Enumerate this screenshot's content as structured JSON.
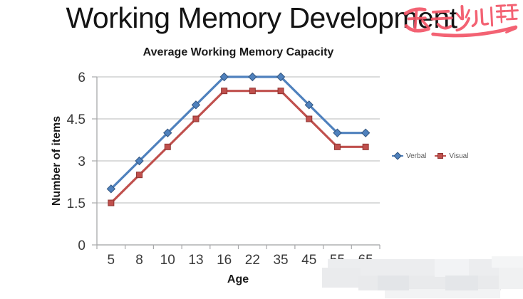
{
  "slide": {
    "title": "Working Memory Development"
  },
  "watermark": {
    "text": "速云少儿编程",
    "color": "#f25568"
  },
  "chart_data": {
    "type": "line",
    "title": "Average Working Memory Capacity",
    "xlabel": "Age",
    "ylabel": "Number of items",
    "categories": [
      "5",
      "8",
      "10",
      "13",
      "16",
      "22",
      "35",
      "45",
      "55",
      "65"
    ],
    "series": [
      {
        "name": "Verbal",
        "color": "#4f81bd",
        "border": "#33567f",
        "marker": "diamond",
        "values": [
          2,
          3,
          4,
          5,
          6,
          6,
          6,
          5,
          4,
          4
        ]
      },
      {
        "name": "Visual",
        "color": "#c0504d",
        "border": "#8e3431",
        "marker": "square",
        "values": [
          1.5,
          2.5,
          3.5,
          4.5,
          5.5,
          5.5,
          5.5,
          4.5,
          3.5,
          3.5
        ]
      }
    ],
    "ylim": [
      0,
      6
    ],
    "yticks": [
      0,
      1.5,
      3,
      4.5,
      6
    ],
    "grid": true,
    "legend_position": "right",
    "axis_color": "#a8a9ab",
    "gridline_color": "#c5c6c8",
    "tick_label_color": "#3a3a3a",
    "legend_text_color": "#595959"
  }
}
